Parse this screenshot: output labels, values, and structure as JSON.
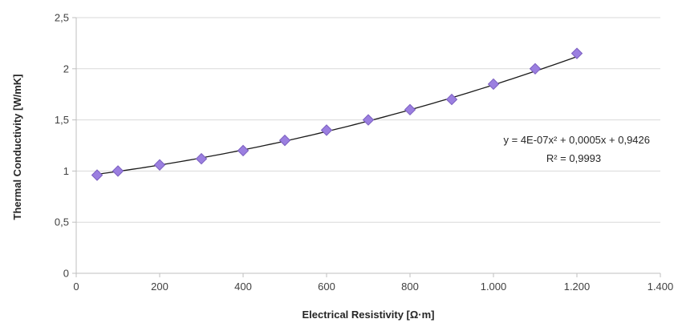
{
  "chart_data": {
    "type": "scatter",
    "xlabel": "Electrical Resistivity [Ω·m]",
    "ylabel": "Thermal Conductivity [W/mK]",
    "xlim": [
      0,
      1400
    ],
    "ylim": [
      0,
      2.5
    ],
    "x_ticks": [
      0,
      200,
      400,
      600,
      800,
      1000,
      1200,
      1400
    ],
    "x_tick_labels": [
      "0",
      "200",
      "400",
      "600",
      "800",
      "1.000",
      "1.200",
      "1.400"
    ],
    "y_ticks": [
      0,
      0.5,
      1,
      1.5,
      2,
      2.5
    ],
    "y_tick_labels": [
      "0",
      "0,5",
      "1",
      "1,5",
      "2",
      "2,5"
    ],
    "grid": "horizontal",
    "series": [
      {
        "marker": "diamond",
        "color": "#9b7fe0",
        "x": [
          50,
          100,
          200,
          300,
          400,
          500,
          600,
          700,
          800,
          900,
          1000,
          1100,
          1200
        ],
        "y": [
          0.96,
          1.0,
          1.06,
          1.12,
          1.2,
          1.3,
          1.4,
          1.5,
          1.6,
          1.7,
          1.85,
          2.0,
          2.15
        ]
      }
    ],
    "trendline": {
      "type": "polynomial",
      "coefficients": [
        4e-07,
        0.0005,
        0.9426
      ],
      "x_range": [
        50,
        1200
      ],
      "color": "#1a1a1a",
      "equation_text": "y = 4E-07x² + 0,0005x + 0,9426",
      "r2_text": "R² = 0,9993"
    }
  }
}
